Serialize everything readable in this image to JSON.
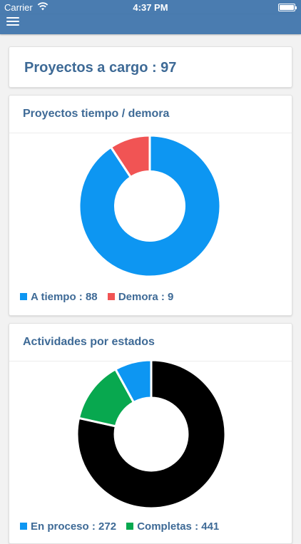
{
  "status_bar": {
    "carrier": "Carrier",
    "time": "4:37 PM"
  },
  "summary": {
    "text": "Proyectos a cargo : 97"
  },
  "time_chart": {
    "title": "Proyectos tiempo / demora",
    "legend": [
      {
        "text": "A tiempo : 88",
        "color": "#0d96f2"
      },
      {
        "text": "Demora : 9",
        "color": "#f15454"
      }
    ]
  },
  "status_chart": {
    "title": "Actividades por estados",
    "legend": [
      {
        "text": "En proceso : 272",
        "color": "#0d96f2"
      },
      {
        "text": "Completas : 441",
        "color": "#08a84f"
      }
    ]
  },
  "chart_data": [
    {
      "type": "pie",
      "title": "Proyectos tiempo / demora",
      "series": [
        {
          "name": "A tiempo",
          "value": 88,
          "color": "#0d96f2"
        },
        {
          "name": "Demora",
          "value": 9,
          "color": "#f15454"
        }
      ]
    },
    {
      "type": "pie",
      "title": "Actividades por estados",
      "series": [
        {
          "value": 0.785,
          "color": "#000000"
        },
        {
          "value": 0.135,
          "color": "#08a84f"
        },
        {
          "value": 0.08,
          "color": "#0d96f2"
        }
      ]
    }
  ]
}
